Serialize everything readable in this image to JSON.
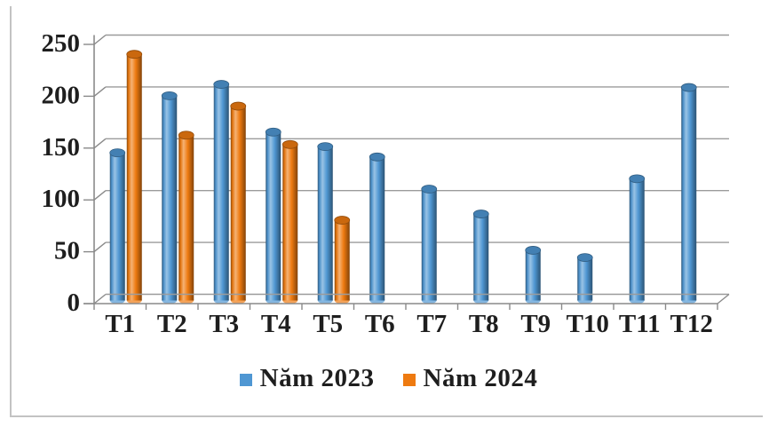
{
  "chart_data": {
    "type": "bar",
    "style": "3d-cylinder",
    "title": "",
    "xlabel": "",
    "ylabel": "",
    "categories": [
      "T1",
      "T2",
      "T3",
      "T4",
      "T5",
      "T6",
      "T7",
      "T8",
      "T9",
      "T10",
      "T11",
      "T12"
    ],
    "series": [
      {
        "name": "Năm 2023",
        "color": "#4F97D3",
        "values": [
          145,
          200,
          211,
          165,
          151,
          141,
          110,
          86,
          51,
          44,
          120,
          208
        ]
      },
      {
        "name": "Năm 2024",
        "color": "#EE7A10",
        "values": [
          240,
          162,
          190,
          153,
          80,
          null,
          null,
          null,
          null,
          null,
          null,
          null
        ]
      }
    ],
    "ylim": [
      0,
      250
    ],
    "yticks": [
      0,
      50,
      100,
      150,
      200,
      250
    ],
    "ytick_labels": [
      "0",
      "50",
      "100",
      "150",
      "200",
      "250"
    ],
    "grid": true,
    "legend_position": "bottom"
  }
}
